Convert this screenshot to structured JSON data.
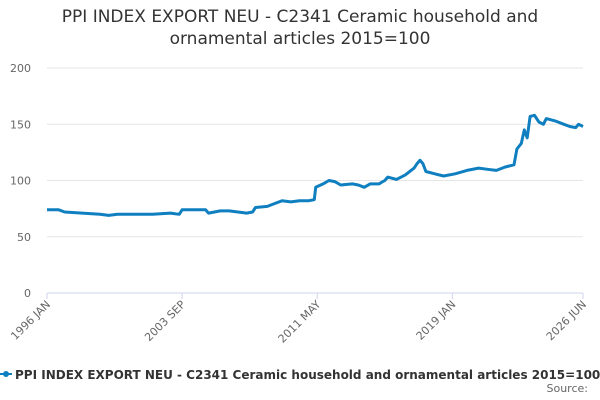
{
  "chart_data": {
    "type": "line",
    "title": "PPI INDEX EXPORT NEU - C2341 Ceramic household and ornamental articles 2015=100",
    "source_label": "Source:",
    "x": [
      "1996-01",
      "1996-09",
      "1997-01",
      "1998-01",
      "1999-01",
      "1999-07",
      "2000-01",
      "2001-01",
      "2002-01",
      "2003-01",
      "2003-07",
      "2003-09",
      "2004-05",
      "2005-01",
      "2005-03",
      "2005-11",
      "2006-05",
      "2006-11",
      "2007-05",
      "2007-09",
      "2007-11",
      "2008-07",
      "2009-01",
      "2009-05",
      "2009-11",
      "2010-05",
      "2010-11",
      "2011-03",
      "2011-04",
      "2011-09",
      "2012-01",
      "2012-05",
      "2012-09",
      "2013-05",
      "2013-09",
      "2014-01",
      "2014-05",
      "2014-11",
      "2015-03",
      "2015-05",
      "2015-11",
      "2016-05",
      "2016-11",
      "2017-01",
      "2017-03",
      "2017-05",
      "2017-07",
      "2018-01",
      "2018-07",
      "2019-03",
      "2019-11",
      "2020-07",
      "2021-01",
      "2021-07",
      "2022-01",
      "2022-07",
      "2022-09",
      "2022-12",
      "2023-02",
      "2023-04",
      "2023-06",
      "2023-09",
      "2023-12",
      "2024-03",
      "2024-05",
      "2024-11",
      "2025-05",
      "2025-09",
      "2026-01",
      "2026-03",
      "2026-06"
    ],
    "series": [
      {
        "name": "PPI INDEX EXPORT NEU - C2341 Ceramic household and ornamental articles 2015=100",
        "color": "#0f7fc0",
        "values": [
          74,
          74,
          72,
          71,
          70,
          69,
          70,
          70,
          70,
          71,
          70,
          74,
          74,
          74,
          71,
          73,
          73,
          72,
          71,
          72,
          76,
          77,
          80,
          82,
          81,
          82,
          82,
          83,
          94,
          97,
          100,
          99,
          96,
          97,
          96,
          94,
          97,
          97,
          100,
          103,
          101,
          105,
          111,
          115,
          118,
          115,
          108,
          106,
          104,
          106,
          109,
          111,
          110,
          109,
          112,
          114,
          128,
          133,
          145,
          138,
          157,
          158,
          152,
          150,
          155,
          153,
          150,
          148,
          147,
          150,
          148
        ]
      }
    ],
    "xlim": [
      "1996-01",
      "2026-06"
    ],
    "xticks": [
      {
        "value": "1996-01",
        "label": "1996 JAN"
      },
      {
        "value": "2003-09",
        "label": "2003 SEP"
      },
      {
        "value": "2011-05",
        "label": "2011 MAY"
      },
      {
        "value": "2019-01",
        "label": "2019 JAN"
      },
      {
        "value": "2026-06",
        "label": "2026 JUN"
      }
    ],
    "ylim": [
      0,
      200
    ],
    "yticks": [
      0,
      50,
      100,
      150,
      200
    ],
    "grid": true
  }
}
